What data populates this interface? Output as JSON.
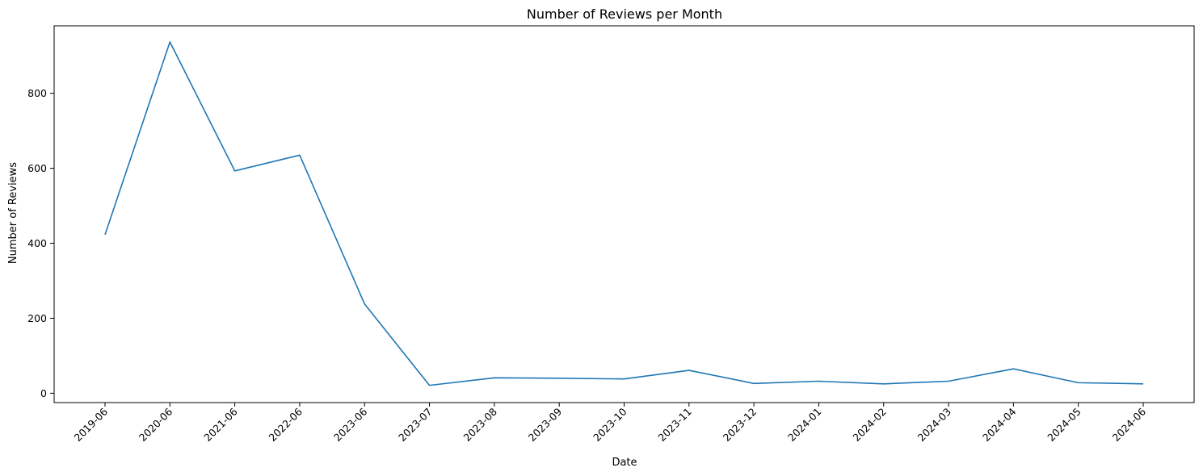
{
  "chart_data": {
    "type": "line",
    "title": "Number of Reviews per Month",
    "xlabel": "Date",
    "ylabel": "Number of Reviews",
    "categories": [
      "2019-06",
      "2020-06",
      "2021-06",
      "2022-06",
      "2023-06",
      "2023-07",
      "2023-08",
      "2023-09",
      "2023-10",
      "2023-11",
      "2023-12",
      "2024-01",
      "2024-02",
      "2024-03",
      "2024-04",
      "2024-05",
      "2024-06"
    ],
    "series": [
      {
        "values": [
          423,
          937,
          593,
          635,
          238,
          21,
          41,
          40,
          38,
          61,
          26,
          32,
          25,
          32,
          65,
          28,
          25
        ],
        "color": "#1f77b4"
      }
    ],
    "yticks": [
      0,
      200,
      400,
      600,
      800
    ],
    "ylim": [
      -25,
      980
    ],
    "grid": false,
    "legend": "none"
  }
}
